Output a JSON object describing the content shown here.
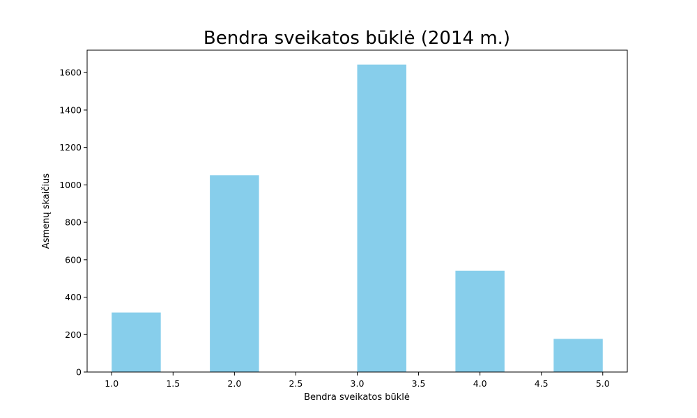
{
  "chart_data": {
    "type": "bar",
    "title": "Bendra sveikatos būklė (2014 m.)",
    "xlabel": "Bendra sveikatos būklė",
    "ylabel": "Asmenų skaičius",
    "xlim": [
      0.8,
      5.2
    ],
    "ylim": [
      0,
      1720
    ],
    "x_ticks": [
      1.0,
      1.5,
      2.0,
      2.5,
      3.0,
      3.5,
      4.0,
      4.5,
      5.0
    ],
    "x_tick_labels": [
      "1.0",
      "1.5",
      "2.0",
      "2.5",
      "3.0",
      "3.5",
      "4.0",
      "4.5",
      "5.0"
    ],
    "y_ticks": [
      0,
      200,
      400,
      600,
      800,
      1000,
      1200,
      1400,
      1600
    ],
    "y_tick_labels": [
      "0",
      "200",
      "400",
      "600",
      "800",
      "1000",
      "1200",
      "1400",
      "1600"
    ],
    "bins": [
      {
        "x0": 1.0,
        "x1": 1.4,
        "value": 318
      },
      {
        "x0": 1.8,
        "x1": 2.2,
        "value": 1052
      },
      {
        "x0": 3.0,
        "x1": 3.4,
        "value": 1643
      },
      {
        "x0": 3.8,
        "x1": 4.2,
        "value": 541
      },
      {
        "x0": 4.6,
        "x1": 5.0,
        "value": 177
      }
    ],
    "bar_color": "#87ceeb",
    "grid": false,
    "legend": false
  }
}
